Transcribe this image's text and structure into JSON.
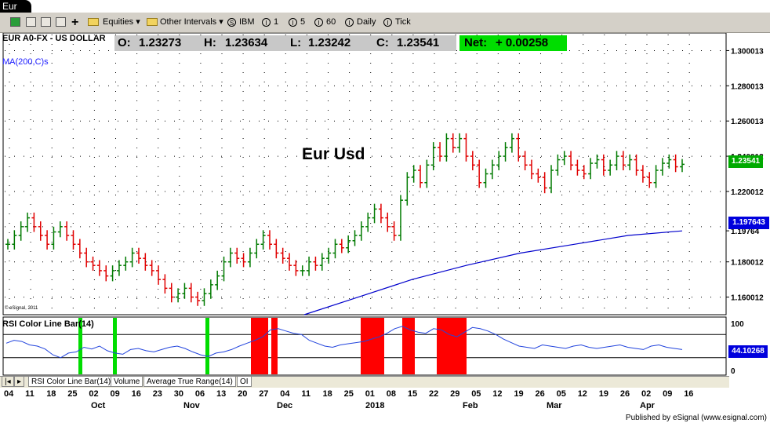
{
  "window": {
    "title": "Eur"
  },
  "toolbar": {
    "equities_label": "Equities",
    "intervals_label": "Other Intervals",
    "intervals": [
      "IBM",
      "1",
      "5",
      "60",
      "Daily",
      "Tick"
    ],
    "interval_glyphs": [
      "S",
      "I",
      "I",
      "I",
      "I",
      "I"
    ]
  },
  "chart": {
    "symbol_label": "EUR A0-FX - US DOLLAR",
    "ma_label": "MA(200,C)s",
    "title": "Eur Usd",
    "copyright": "© eSignal, 2011",
    "ohlc": {
      "o_label": "O:",
      "o": "1.23273",
      "h_label": "H:",
      "h": "1.23634",
      "l_label": "L:",
      "l": "1.23242",
      "c_label": "C:",
      "c": "1.23541"
    },
    "net_label": "Net:",
    "net_value": "+ 0.00258",
    "price_tag": "1.23541",
    "ma_tag": "1.197643",
    "rsi_tag": "44.10268",
    "price_axis_labels": [
      "1.300013",
      "1.280013",
      "1.260013",
      "1.240012",
      "1.220012",
      "1.19764",
      "1.180012",
      "1.160012"
    ],
    "rsi_axis_labels": [
      "100",
      "0"
    ],
    "rsi_label": "RSI Color Line Bar(14)",
    "colors": {
      "up": "#007a00",
      "down": "#e00000",
      "ma": "#0000cc",
      "rsi_line": "#2244dd",
      "overbought": "#ff0000",
      "oversold": "#00dd00"
    }
  },
  "chart_data": {
    "type": "candlestick",
    "title": "Eur Usd",
    "symbol": "EUR A0-FX - US DOLLAR",
    "indicators": [
      "MA(200,C)s",
      "RSI Color Line Bar(14)"
    ],
    "x_tick_labels": [
      "04",
      "11",
      "18",
      "25",
      "02",
      "09",
      "16",
      "23",
      "30",
      "06",
      "13",
      "20",
      "27",
      "04",
      "11",
      "18",
      "25",
      "01",
      "08",
      "15",
      "22",
      "29",
      "05",
      "12",
      "19",
      "26",
      "05",
      "12",
      "19",
      "26",
      "02",
      "09",
      "16"
    ],
    "month_labels": [
      "Oct",
      "Nov",
      "Dec",
      "2018",
      "Feb",
      "Mar",
      "Apr"
    ],
    "ylim": [
      1.15,
      1.31
    ],
    "close_start": 1.19,
    "close_series": [
      1.19,
      1.195,
      1.2,
      1.205,
      1.2,
      1.195,
      1.19,
      1.197,
      1.2,
      1.195,
      1.19,
      1.185,
      1.18,
      1.178,
      1.175,
      1.172,
      1.175,
      1.178,
      1.18,
      1.185,
      1.182,
      1.178,
      1.175,
      1.17,
      1.165,
      1.16,
      1.162,
      1.165,
      1.16,
      1.158,
      1.162,
      1.167,
      1.172,
      1.18,
      1.185,
      1.182,
      1.18,
      1.185,
      1.19,
      1.195,
      1.19,
      1.185,
      1.182,
      1.178,
      1.175,
      1.175,
      1.18,
      1.178,
      1.182,
      1.185,
      1.19,
      1.188,
      1.192,
      1.195,
      1.2,
      1.205,
      1.21,
      1.205,
      1.2,
      1.195,
      1.215,
      1.228,
      1.232,
      1.225,
      1.235,
      1.245,
      1.24,
      1.25,
      1.245,
      1.25,
      1.24,
      1.235,
      1.225,
      1.23,
      1.235,
      1.24,
      1.245,
      1.25,
      1.24,
      1.235,
      1.23,
      1.228,
      1.222,
      1.232,
      1.238,
      1.24,
      1.235,
      1.232,
      1.23,
      1.236,
      1.238,
      1.232,
      1.235,
      1.24,
      1.235,
      1.238,
      1.232,
      1.228,
      1.225,
      1.232,
      1.236,
      1.238,
      1.234,
      1.2354
    ],
    "ma_series": [
      1.15,
      1.16,
      1.17,
      1.178,
      1.185,
      1.19,
      1.195,
      1.1976
    ],
    "rsi_overbought": 70,
    "rsi_oversold": 30
  },
  "tabs": [
    "RSI Color Line Bar(14)",
    "Volume",
    "Average True Range(14)",
    "OI"
  ],
  "footer": {
    "published": "Published by eSignal (www.esignal.com)"
  }
}
